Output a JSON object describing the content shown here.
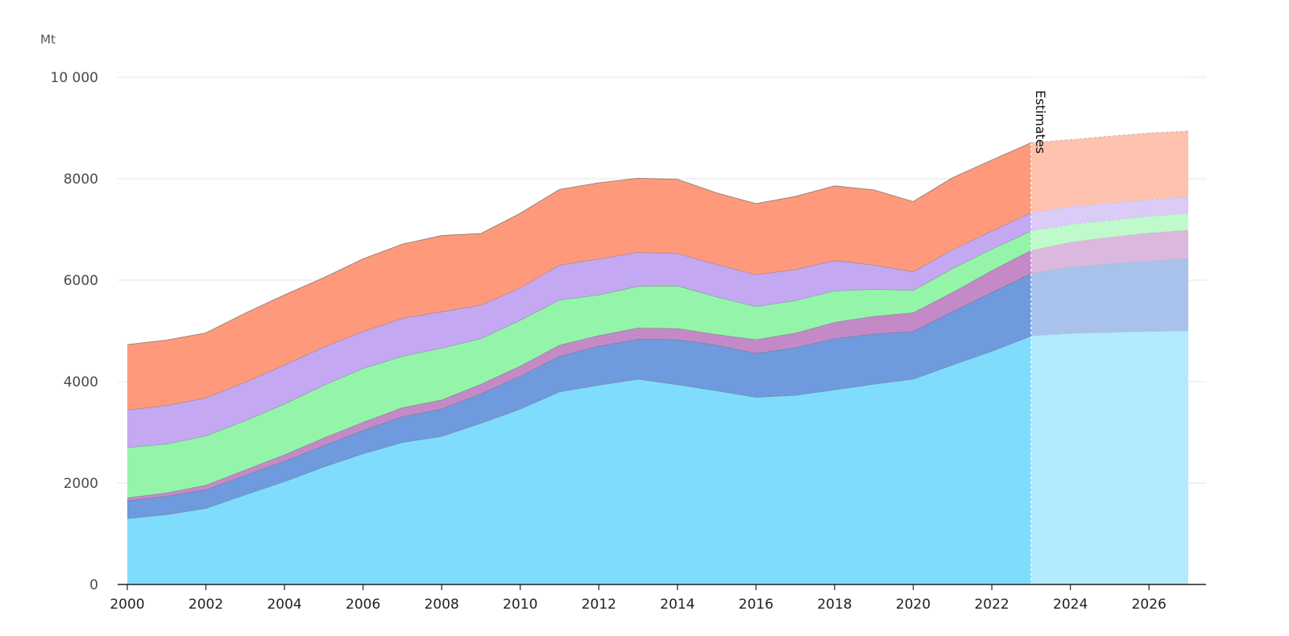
{
  "chart_data": {
    "type": "area",
    "stacked": true,
    "unit_label": "Mt",
    "x": [
      2000,
      2001,
      2002,
      2003,
      2004,
      2005,
      2006,
      2007,
      2008,
      2009,
      2010,
      2011,
      2012,
      2013,
      2014,
      2015,
      2016,
      2017,
      2018,
      2019,
      2020,
      2021,
      2022,
      2023,
      2024,
      2025,
      2026,
      2027
    ],
    "x_ticks": [
      "2000",
      "2002",
      "2004",
      "2006",
      "2008",
      "2010",
      "2012",
      "2014",
      "2016",
      "2018",
      "2020",
      "2022",
      "2024",
      "2026"
    ],
    "y_ticks": [
      "0",
      "2000",
      "4000",
      "6000",
      "8000",
      "10 000"
    ],
    "ylim": [
      0,
      10000
    ],
    "estimate_start": 2023,
    "estimate_label": "Estimates",
    "grid": true,
    "series": [
      {
        "color": "#80dcfc",
        "values": [
          1300,
          1380,
          1500,
          1770,
          2030,
          2320,
          2580,
          2800,
          2920,
          3180,
          3460,
          3800,
          3930,
          4050,
          3940,
          3820,
          3690,
          3730,
          3840,
          3950,
          4050,
          4330,
          4600,
          4900,
          4950,
          4970,
          4990,
          5000
        ]
      },
      {
        "color": "#6f9ade",
        "values": [
          350,
          360,
          370,
          380,
          400,
          420,
          460,
          510,
          540,
          580,
          650,
          700,
          770,
          790,
          890,
          900,
          870,
          940,
          1010,
          990,
          940,
          1050,
          1160,
          1230,
          1310,
          1360,
          1390,
          1430
        ]
      },
      {
        "color": "#c48ac8",
        "values": [
          60,
          70,
          90,
          110,
          130,
          150,
          160,
          180,
          180,
          190,
          200,
          220,
          210,
          220,
          220,
          210,
          270,
          290,
          320,
          350,
          370,
          380,
          430,
          460,
          490,
          520,
          550,
          560
        ]
      },
      {
        "color": "#94f5aa",
        "values": [
          990,
          960,
          970,
          970,
          1000,
          1040,
          1060,
          1010,
          1020,
          900,
          900,
          890,
          800,
          820,
          840,
          740,
          650,
          640,
          620,
          530,
          440,
          470,
          420,
          380,
          350,
          330,
          330,
          330
        ]
      },
      {
        "color": "#c4a8f2",
        "values": [
          740,
          760,
          750,
          760,
          770,
          750,
          730,
          750,
          720,
          660,
          640,
          690,
          710,
          670,
          640,
          640,
          630,
          610,
          600,
          480,
          370,
          370,
          360,
          360,
          350,
          340,
          330,
          330
        ]
      },
      {
        "color": "#fe9a7b",
        "values": [
          1290,
          1290,
          1280,
          1360,
          1380,
          1370,
          1430,
          1460,
          1500,
          1410,
          1470,
          1490,
          1500,
          1460,
          1460,
          1410,
          1400,
          1440,
          1470,
          1480,
          1380,
          1420,
          1400,
          1380,
          1320,
          1320,
          1310,
          1290
        ]
      }
    ]
  }
}
